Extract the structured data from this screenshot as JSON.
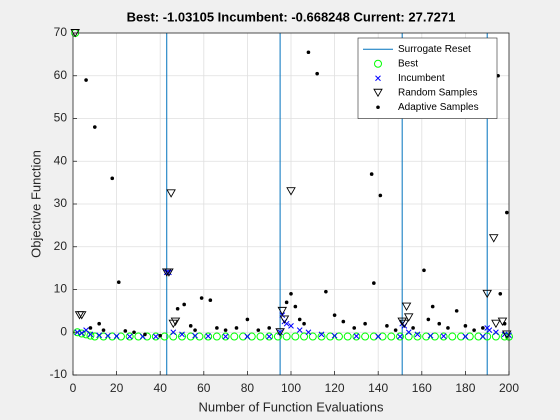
{
  "chart_data": {
    "type": "scatter",
    "title": "Best: -1.03105 Incumbent: -0.668248 Current: 27.7271",
    "xlabel": "Number of Function Evaluations",
    "ylabel": "Objective Function",
    "xlim": [
      0,
      200
    ],
    "ylim": [
      -10,
      70
    ],
    "xticks": [
      0,
      20,
      40,
      60,
      80,
      100,
      120,
      140,
      160,
      180,
      200
    ],
    "yticks": [
      -10,
      0,
      10,
      20,
      30,
      40,
      50,
      60,
      70
    ],
    "grid": true,
    "legend": "upper right",
    "series": [
      {
        "name": "Surrogate Reset",
        "color": "#0072bd",
        "marker": "vline",
        "x": [
          43,
          95,
          151,
          190
        ]
      },
      {
        "name": "Best",
        "color": "#00ff00",
        "marker": "circle",
        "x": [
          1,
          2,
          4,
          6,
          8,
          10,
          14,
          18,
          22,
          26,
          30,
          34,
          38,
          42,
          46,
          50,
          54,
          58,
          62,
          66,
          70,
          74,
          78,
          82,
          86,
          90,
          94,
          98,
          102,
          106,
          110,
          114,
          118,
          122,
          126,
          130,
          134,
          138,
          142,
          146,
          150,
          154,
          158,
          162,
          166,
          170,
          174,
          178,
          182,
          186,
          190,
          194,
          198,
          200
        ],
        "values": [
          70,
          0,
          -0.3,
          -0.5,
          -0.8,
          -1,
          -1,
          -1,
          -1,
          -1,
          -1,
          -1,
          -1,
          -1,
          -1,
          -1,
          -1,
          -1,
          -1,
          -1,
          -1,
          -1,
          -1,
          -1,
          -1,
          -1,
          -1,
          -1,
          -1,
          -1,
          -1,
          -1,
          -1,
          -1,
          -1,
          -1,
          -1,
          -1,
          -1,
          -1,
          -1,
          -1,
          -1,
          -1,
          -1,
          -1,
          -1,
          -1,
          -1,
          -1,
          -1,
          -1,
          -1,
          -1.03
        ]
      },
      {
        "name": "Incumbent",
        "color": "#0000ff",
        "marker": "x",
        "x": [
          2,
          4,
          6,
          8,
          12,
          16,
          20,
          26,
          32,
          38,
          43,
          44,
          46,
          50,
          56,
          62,
          70,
          80,
          90,
          95,
          96,
          97,
          98,
          100,
          104,
          108,
          114,
          120,
          130,
          140,
          150,
          151,
          152,
          154,
          158,
          164,
          170,
          180,
          188,
          190,
          191,
          194,
          198,
          200
        ],
        "values": [
          0,
          -0.2,
          0.5,
          -0.5,
          -0.7,
          -0.8,
          -0.9,
          -1,
          -1,
          -1,
          14,
          14,
          0,
          -0.5,
          -0.8,
          -0.9,
          -1,
          -1,
          -1,
          0,
          4,
          2.5,
          2,
          1.5,
          0.5,
          0,
          -0.5,
          -0.8,
          -0.9,
          -1,
          -1,
          2,
          1.5,
          0,
          -0.5,
          -0.8,
          -0.9,
          -1,
          -1,
          1,
          0.5,
          0,
          -0.5,
          -0.7
        ]
      },
      {
        "name": "Random Samples",
        "color": "#000000",
        "marker": "triangle-down",
        "x": [
          1,
          3,
          4,
          43,
          44,
          45,
          46,
          47,
          95,
          96,
          97,
          100,
          151,
          152,
          153,
          154,
          190,
          193,
          194,
          197,
          199
        ],
        "values": [
          70,
          4,
          4,
          14,
          14,
          32.5,
          2,
          2.5,
          0,
          5,
          3,
          33,
          2.5,
          2,
          6,
          3.5,
          9,
          22,
          2,
          2.5,
          -0.5
        ]
      },
      {
        "name": "Adaptive Samples",
        "color": "#000000",
        "marker": "dot",
        "x": [
          6,
          10,
          18,
          21,
          8,
          12,
          14,
          24,
          28,
          33,
          40,
          48,
          51,
          54,
          56,
          59,
          63,
          66,
          70,
          75,
          80,
          85,
          90,
          98,
          100,
          102,
          104,
          106,
          108,
          112,
          116,
          120,
          124,
          129,
          134,
          137,
          138,
          141,
          144,
          148,
          156,
          161,
          163,
          165,
          168,
          172,
          176,
          180,
          184,
          188,
          195,
          196,
          198,
          199
        ],
        "values": [
          59,
          48,
          36,
          11.7,
          1,
          2,
          0.5,
          0.3,
          0,
          -0.5,
          -0.8,
          5.5,
          6.5,
          1.5,
          0.5,
          8,
          7.5,
          1,
          0.5,
          1,
          3,
          0.5,
          1,
          7,
          9,
          6,
          3,
          2,
          65.5,
          60.5,
          9.5,
          4,
          2.5,
          1,
          2,
          37,
          11.5,
          32,
          1.5,
          0.5,
          1,
          14.5,
          3,
          6,
          2,
          1,
          5,
          1.5,
          0.5,
          1,
          60,
          9,
          2,
          28
        ]
      }
    ]
  }
}
